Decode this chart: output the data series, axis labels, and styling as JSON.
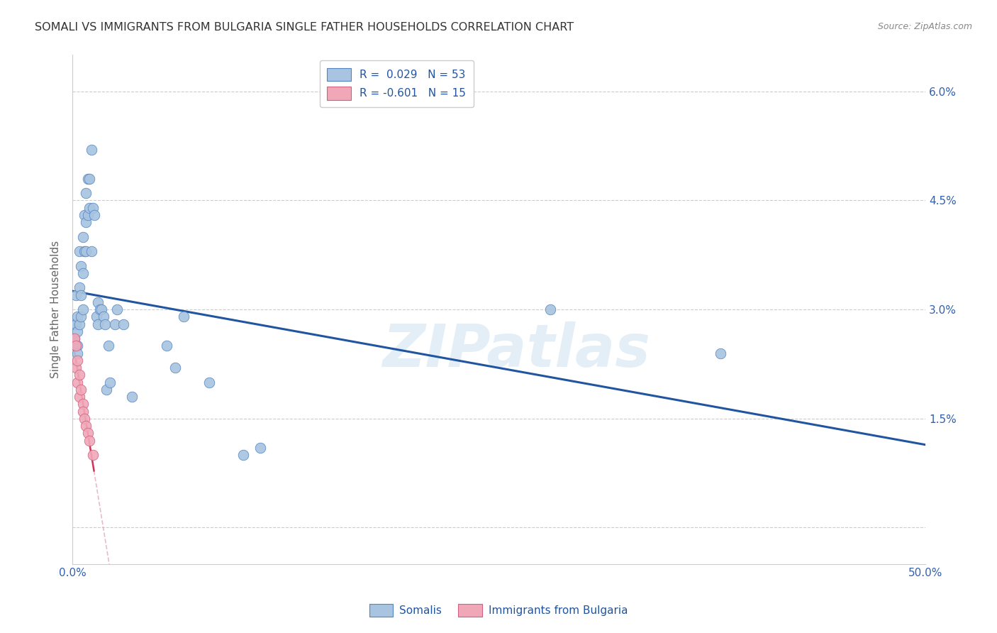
{
  "title": "SOMALI VS IMMIGRANTS FROM BULGARIA SINGLE FATHER HOUSEHOLDS CORRELATION CHART",
  "source": "Source: ZipAtlas.com",
  "ylabel": "Single Father Households",
  "xlim": [
    0.0,
    0.5
  ],
  "ylim": [
    -0.005,
    0.065
  ],
  "ytick_vals": [
    0.0,
    0.015,
    0.03,
    0.045,
    0.06
  ],
  "ytick_labels": [
    "",
    "1.5%",
    "3.0%",
    "4.5%",
    "6.0%"
  ],
  "xtick_vals": [
    0.0,
    0.05,
    0.1,
    0.15,
    0.2,
    0.25,
    0.3,
    0.35,
    0.4,
    0.45,
    0.5
  ],
  "xtick_labels": [
    "0.0%",
    "",
    "",
    "",
    "",
    "",
    "",
    "",
    "",
    "",
    "50.0%"
  ],
  "legend_r1": "R =  0.029   N = 53",
  "legend_r2": "R = -0.601   N = 15",
  "color_somali": "#a8c4e0",
  "color_bulgaria": "#f0a8b8",
  "edge_somali": "#5585c0",
  "edge_bulgaria": "#d06080",
  "line_color_somali": "#2255a0",
  "line_color_bulgaria": "#cc3355",
  "line_color_bulgaria_dash": "#e0a0b0",
  "background_color": "#ffffff",
  "watermark": "ZIPatlas",
  "legend_bottom_labels": [
    "Somalis",
    "Immigrants from Bulgaria"
  ],
  "somali_x": [
    0.001,
    0.001,
    0.002,
    0.002,
    0.002,
    0.003,
    0.003,
    0.003,
    0.003,
    0.004,
    0.004,
    0.004,
    0.005,
    0.005,
    0.005,
    0.006,
    0.006,
    0.006,
    0.007,
    0.007,
    0.008,
    0.008,
    0.008,
    0.009,
    0.009,
    0.01,
    0.01,
    0.011,
    0.011,
    0.012,
    0.013,
    0.014,
    0.015,
    0.015,
    0.016,
    0.017,
    0.018,
    0.019,
    0.02,
    0.021,
    0.022,
    0.025,
    0.026,
    0.03,
    0.035,
    0.055,
    0.06,
    0.065,
    0.08,
    0.1,
    0.11,
    0.28,
    0.38
  ],
  "somali_y": [
    0.028,
    0.026,
    0.032,
    0.028,
    0.025,
    0.029,
    0.027,
    0.025,
    0.024,
    0.038,
    0.033,
    0.028,
    0.036,
    0.032,
    0.029,
    0.04,
    0.035,
    0.03,
    0.043,
    0.038,
    0.046,
    0.042,
    0.038,
    0.048,
    0.043,
    0.048,
    0.044,
    0.052,
    0.038,
    0.044,
    0.043,
    0.029,
    0.031,
    0.028,
    0.03,
    0.03,
    0.029,
    0.028,
    0.019,
    0.025,
    0.02,
    0.028,
    0.03,
    0.028,
    0.018,
    0.025,
    0.022,
    0.029,
    0.02,
    0.01,
    0.011,
    0.03,
    0.024
  ],
  "bulgaria_x": [
    0.001,
    0.002,
    0.002,
    0.003,
    0.003,
    0.004,
    0.004,
    0.005,
    0.006,
    0.006,
    0.007,
    0.008,
    0.009,
    0.01,
    0.012
  ],
  "bulgaria_y": [
    0.026,
    0.025,
    0.022,
    0.023,
    0.02,
    0.021,
    0.018,
    0.019,
    0.017,
    0.016,
    0.015,
    0.014,
    0.013,
    0.012,
    0.01
  ]
}
